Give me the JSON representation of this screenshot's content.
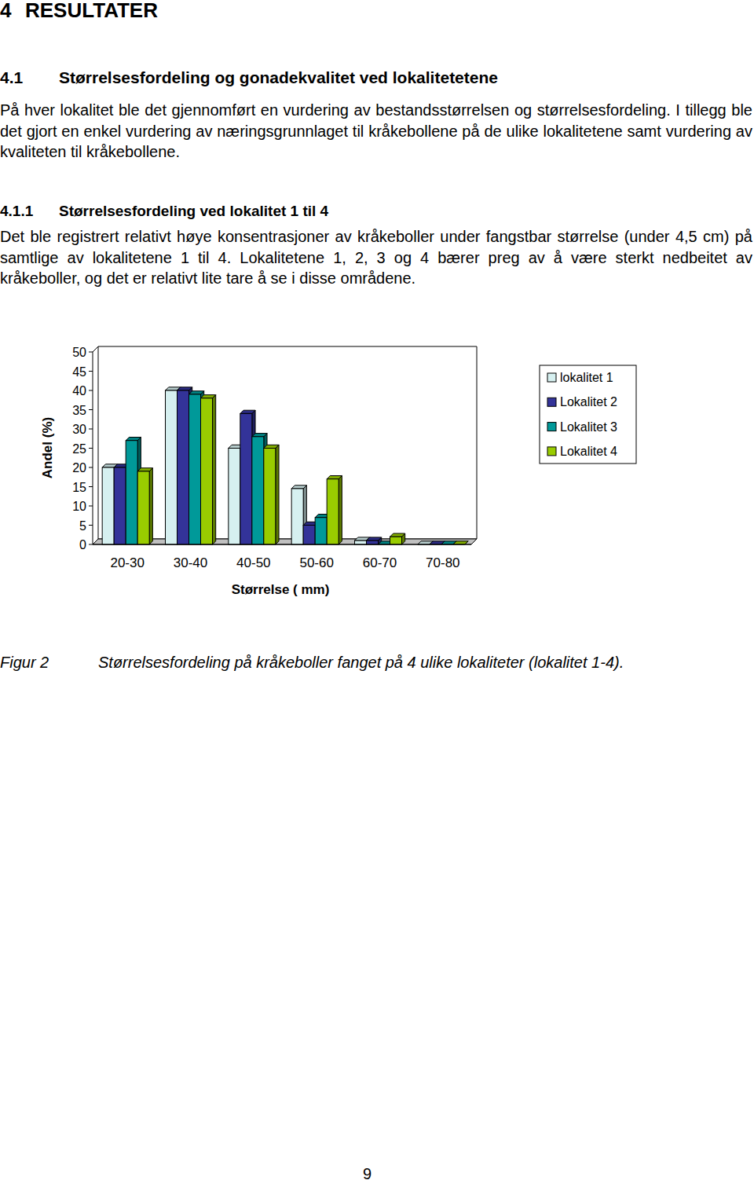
{
  "document": {
    "heading": {
      "number": "4",
      "title": "RESULTATER"
    },
    "section": {
      "number": "4.1",
      "title": "Størrelsesfordeling og gonadekvalitet ved lokalitetetene"
    },
    "paragraph_1": "På hver lokalitet ble det gjennomført en vurdering av bestandsstørrelsen og størrelsesfordeling. I tillegg ble det gjort en enkel vurdering av næringsgrunnlaget til kråkebollene på de ulike lokalitetene samt vurdering av kvaliteten til kråkebollene.",
    "subsection": {
      "number": "4.1.1",
      "title": "Størrelsesfordeling ved lokalitet 1 til 4"
    },
    "paragraph_2": "Det ble registrert relativt høye konsentrasjoner av kråkeboller under fangstbar størrelse (under 4,5 cm) på samtlige av lokalitetene 1 til 4. Lokalitetene 1, 2, 3 og 4 bærer preg av å være sterkt nedbeitet av kråkeboller, og det er relativt lite tare å se i disse områdene.",
    "caption": {
      "label": "Figur 2",
      "text": "Størrelsesfordeling på kråkeboller fanget på 4 ulike lokaliteter (lokalitet 1-4)."
    },
    "page_number": "9"
  },
  "chart_data": {
    "type": "bar",
    "x_label": "Størrelse ( mm)",
    "y_label": "Andel (%)",
    "categories": [
      "20-30",
      "30-40",
      "40-50",
      "50-60",
      "60-70",
      "70-80"
    ],
    "series": [
      {
        "name": "lokalitet 1",
        "color": "#d6f0f0",
        "values": [
          20,
          40,
          25,
          14.5,
          1,
          0
        ]
      },
      {
        "name": "Lokalitet 2",
        "color": "#333399",
        "values": [
          20,
          40,
          34,
          5,
          1,
          0
        ]
      },
      {
        "name": "Lokalitet 3",
        "color": "#009999",
        "values": [
          27,
          39,
          28,
          7,
          0,
          0
        ]
      },
      {
        "name": "Lokalitet 4",
        "color": "#99cc00",
        "values": [
          19,
          38,
          25,
          17,
          2,
          0
        ]
      }
    ],
    "ylim": [
      0,
      50
    ],
    "yticks": [
      0,
      5,
      10,
      15,
      20,
      25,
      30,
      35,
      40,
      45,
      50
    ],
    "grid": false,
    "legend": "right"
  }
}
